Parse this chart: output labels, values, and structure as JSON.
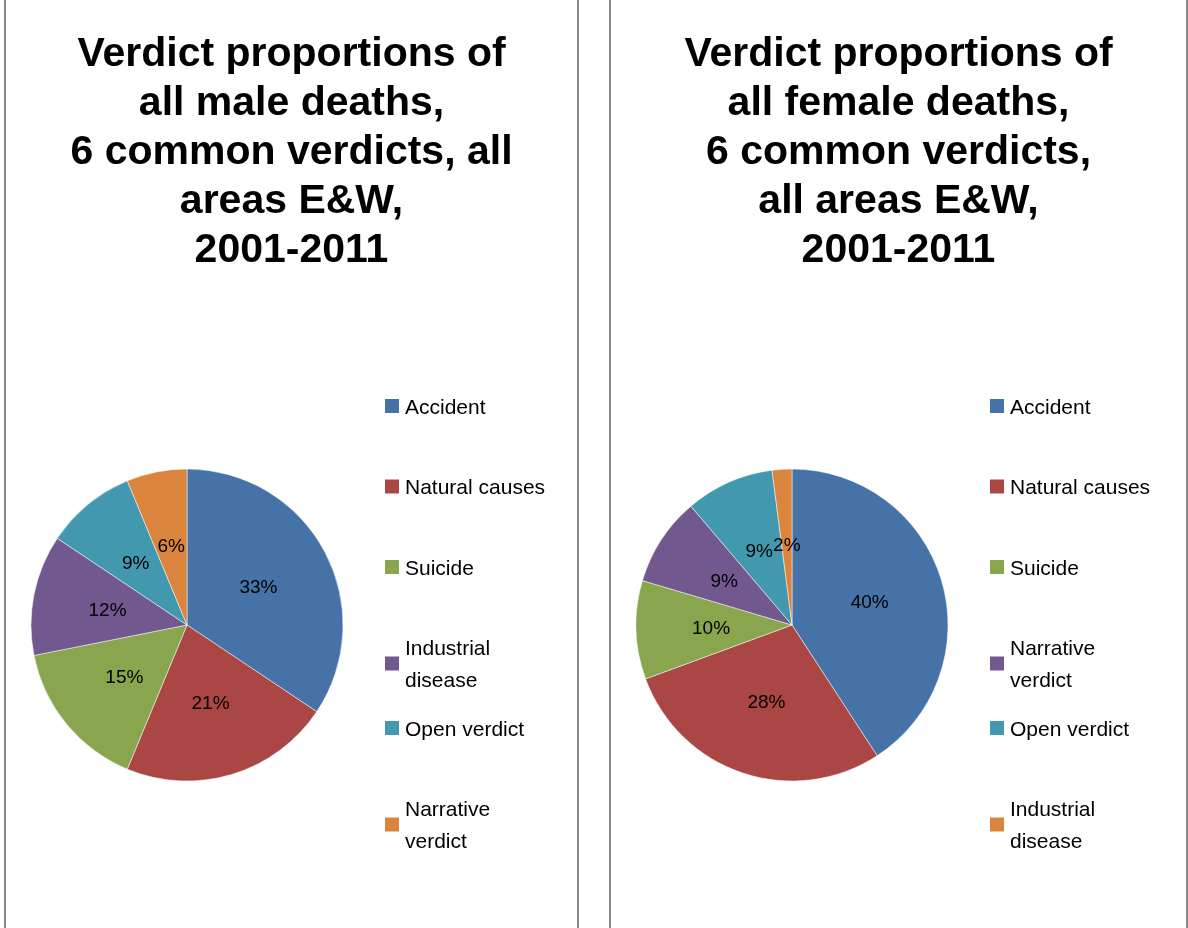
{
  "chart_data": [
    {
      "type": "pie",
      "title": "Verdict proportions of\nall male deaths,\n6 common verdicts, all\nareas E&W,\n2001-2011",
      "categories": [
        "Accident",
        "Natural causes",
        "Suicide",
        "Industrial disease",
        "Open verdict",
        "Narrative verdict"
      ],
      "values": [
        33,
        21,
        15,
        12,
        9,
        6
      ],
      "colors": [
        "#4572a7",
        "#aa4643",
        "#89a54e",
        "#71588f",
        "#4198af",
        "#db843d"
      ],
      "value_labels": [
        "33%",
        "21%",
        "15%",
        "12%",
        "9%",
        "6%"
      ],
      "legend": "right"
    },
    {
      "type": "pie",
      "title": "Verdict proportions of\nall female deaths,\n6 common verdicts,\nall areas E&W,\n2001-2011",
      "categories": [
        "Accident",
        "Natural causes",
        "Suicide",
        "Narrative verdict",
        "Open verdict",
        "Industrial disease"
      ],
      "values": [
        40,
        28,
        10,
        9,
        9,
        2
      ],
      "colors": [
        "#4572a7",
        "#aa4643",
        "#89a54e",
        "#71588f",
        "#4198af",
        "#db843d"
      ],
      "value_labels": [
        "40%",
        "28%",
        "10%",
        "9%",
        "9%",
        "2%"
      ],
      "legend": "right"
    }
  ]
}
